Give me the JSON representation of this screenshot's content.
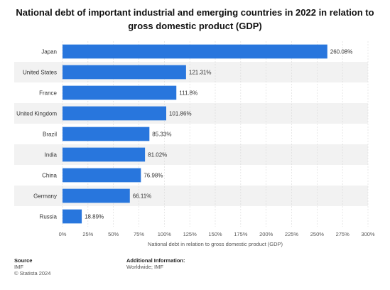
{
  "title": "National debt of important industrial and emerging countries in 2022 in relation to gross domestic product (GDP)",
  "chart_data": {
    "type": "bar",
    "orientation": "horizontal",
    "categories": [
      "Japan",
      "United States",
      "France",
      "United Kingdom",
      "Brazil",
      "India",
      "China",
      "Germany",
      "Russia"
    ],
    "values": [
      260.08,
      121.31,
      111.8,
      101.86,
      85.33,
      81.02,
      76.98,
      66.11,
      18.89
    ],
    "value_labels": [
      "260.08%",
      "121.31%",
      "111.8%",
      "101.86%",
      "85.33%",
      "81.02%",
      "76.98%",
      "66.11%",
      "18.89%"
    ],
    "xlabel": "National debt in relation to gross domestic product (GDP)",
    "ylabel": "",
    "xlim": [
      0,
      300
    ],
    "xticks": [
      0,
      25,
      50,
      75,
      100,
      125,
      150,
      175,
      200,
      225,
      250,
      275,
      300
    ],
    "xtick_labels": [
      "0%",
      "25%",
      "50%",
      "75%",
      "100%",
      "125%",
      "150%",
      "175%",
      "200%",
      "225%",
      "250%",
      "275%",
      "300%"
    ],
    "bar_color": "#2876dd",
    "row_band_color": "#f2f2f2",
    "grid": true
  },
  "footer": {
    "source_heading": "Source",
    "source_lines": [
      "IMF",
      "© Statista 2024"
    ],
    "info_heading": "Additional Information:",
    "info_lines": [
      "Worldwide; IMF"
    ]
  }
}
